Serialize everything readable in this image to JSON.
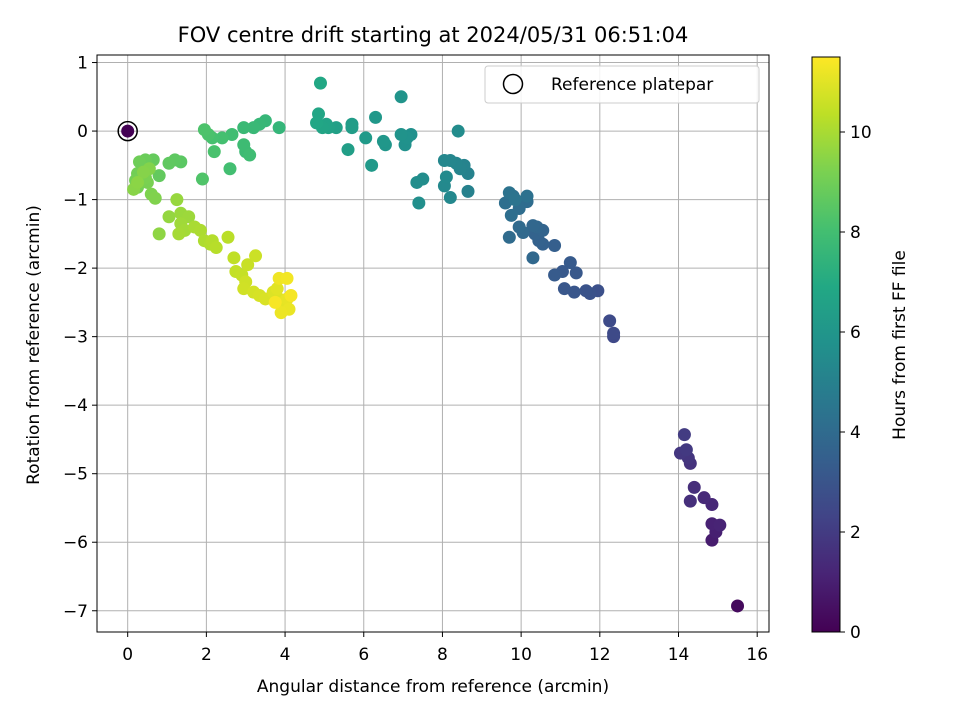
{
  "chart_data": {
    "type": "scatter",
    "title": "FOV centre drift starting at 2024/05/31 06:51:04",
    "xlabel": "Angular distance from reference (arcmin)",
    "ylabel": "Rotation from reference (arcmin)",
    "xlim": [
      -0.78,
      16.3
    ],
    "ylim": [
      -7.31,
      1.11
    ],
    "xticks": [
      0,
      2,
      4,
      6,
      8,
      10,
      12,
      14,
      16
    ],
    "yticks": [
      1,
      0,
      -1,
      -2,
      -3,
      -4,
      -5,
      -6,
      -7
    ],
    "xtick_labels": [
      "0",
      "2",
      "4",
      "6",
      "8",
      "10",
      "12",
      "14",
      "16"
    ],
    "ytick_labels": [
      "1",
      "0",
      "−1",
      "−2",
      "−3",
      "−4",
      "−5",
      "−6",
      "−7"
    ],
    "grid": true,
    "legend": {
      "placement": "top-right",
      "entries": [
        "Reference platepar"
      ]
    },
    "colorbar": {
      "label": "Hours from first FF file",
      "range": [
        0,
        11.5
      ],
      "ticks": [
        0,
        2,
        4,
        6,
        8,
        10
      ],
      "tick_labels": [
        "0",
        "2",
        "4",
        "6",
        "8",
        "10"
      ],
      "colormap": "viridis"
    },
    "reference_point": {
      "x": 0,
      "y": 0
    },
    "points": [
      [
        0,
        0,
        0
      ],
      [
        15.5,
        -6.93,
        0.3
      ],
      [
        14.85,
        -5.97,
        0.9
      ],
      [
        14.95,
        -5.85,
        1.0
      ],
      [
        14.85,
        -5.73,
        1.1
      ],
      [
        15.05,
        -5.75,
        1.15
      ],
      [
        14.85,
        -5.45,
        1.25
      ],
      [
        14.65,
        -5.35,
        1.35
      ],
      [
        14.4,
        -5.2,
        1.5
      ],
      [
        14.3,
        -5.4,
        1.55
      ],
      [
        14.3,
        -4.85,
        1.65
      ],
      [
        14.25,
        -4.77,
        1.75
      ],
      [
        14.05,
        -4.7,
        1.85
      ],
      [
        14.2,
        -4.65,
        1.9
      ],
      [
        14.15,
        -4.43,
        2.0
      ],
      [
        12.35,
        -3.0,
        2.5
      ],
      [
        12.35,
        -2.95,
        2.55
      ],
      [
        12.25,
        -2.77,
        2.6
      ],
      [
        11.95,
        -2.33,
        2.8
      ],
      [
        11.75,
        -2.37,
        2.9
      ],
      [
        11.65,
        -2.33,
        2.95
      ],
      [
        11.35,
        -2.35,
        3.05
      ],
      [
        11.1,
        -2.3,
        3.1
      ],
      [
        11.4,
        -2.07,
        3.15
      ],
      [
        11.05,
        -2.05,
        3.2
      ],
      [
        11.25,
        -1.92,
        3.25
      ],
      [
        10.85,
        -2.1,
        3.3
      ],
      [
        10.85,
        -1.67,
        3.45
      ],
      [
        10.55,
        -1.65,
        3.55
      ],
      [
        10.45,
        -1.6,
        3.6
      ],
      [
        10.35,
        -1.5,
        3.65
      ],
      [
        10.55,
        -1.45,
        3.7
      ],
      [
        10.4,
        -1.4,
        3.75
      ],
      [
        10.3,
        -1.38,
        3.8
      ],
      [
        10.3,
        -1.85,
        3.85
      ],
      [
        10.05,
        -1.48,
        3.9
      ],
      [
        9.95,
        -1.4,
        3.95
      ],
      [
        9.7,
        -1.55,
        4.0
      ],
      [
        10.15,
        -1.03,
        4.05
      ],
      [
        9.95,
        -1.13,
        4.1
      ],
      [
        9.75,
        -1.23,
        4.15
      ],
      [
        9.6,
        -1.05,
        4.2
      ],
      [
        9.8,
        -0.95,
        4.25
      ],
      [
        10.15,
        -0.95,
        4.3
      ],
      [
        9.7,
        -0.9,
        4.35
      ],
      [
        9.85,
        -1.0,
        4.4
      ],
      [
        8.65,
        -0.88,
        5.0
      ],
      [
        8.65,
        -0.62,
        5.05
      ],
      [
        8.55,
        -0.5,
        5.1
      ],
      [
        8.45,
        -0.55,
        5.15
      ],
      [
        8.35,
        -0.47,
        5.2
      ],
      [
        8.2,
        -0.43,
        5.25
      ],
      [
        8.05,
        -0.43,
        5.3
      ],
      [
        8.2,
        -0.97,
        5.35
      ],
      [
        8.05,
        -0.8,
        5.4
      ],
      [
        8.1,
        -0.67,
        5.45
      ],
      [
        8.4,
        0.0,
        5.5
      ],
      [
        7.5,
        -0.7,
        5.55
      ],
      [
        7.35,
        -0.75,
        5.6
      ],
      [
        7.4,
        -1.05,
        5.65
      ],
      [
        7.2,
        -0.05,
        5.7
      ],
      [
        7.05,
        -0.2,
        5.75
      ],
      [
        7.1,
        -0.1,
        5.8
      ],
      [
        6.95,
        -0.05,
        5.85
      ],
      [
        6.95,
        0.5,
        5.9
      ],
      [
        6.55,
        -0.2,
        6.0
      ],
      [
        6.5,
        -0.15,
        6.05
      ],
      [
        6.3,
        0.2,
        6.1
      ],
      [
        6.2,
        -0.5,
        6.15
      ],
      [
        6.05,
        -0.1,
        6.2
      ],
      [
        5.7,
        0.1,
        6.3
      ],
      [
        5.7,
        0.05,
        6.35
      ],
      [
        5.6,
        -0.27,
        6.4
      ],
      [
        5.3,
        0.05,
        6.5
      ],
      [
        5.1,
        0.05,
        6.6
      ],
      [
        5.05,
        0.1,
        6.65
      ],
      [
        4.95,
        0.05,
        6.7
      ],
      [
        4.85,
        0.25,
        6.75
      ],
      [
        4.8,
        0.12,
        6.8
      ],
      [
        4.9,
        0.7,
        6.85
      ],
      [
        3.85,
        0.05,
        7.55
      ],
      [
        3.5,
        0.15,
        7.6
      ],
      [
        3.35,
        0.1,
        7.65
      ],
      [
        3.2,
        0.05,
        7.7
      ],
      [
        2.95,
        0.05,
        7.75
      ],
      [
        3.0,
        -0.3,
        7.8
      ],
      [
        2.95,
        -0.2,
        7.85
      ],
      [
        3.1,
        -0.35,
        7.9
      ],
      [
        2.65,
        -0.05,
        7.95
      ],
      [
        2.6,
        -0.55,
        8.0
      ],
      [
        2.4,
        -0.1,
        8.05
      ],
      [
        2.15,
        -0.1,
        8.1
      ],
      [
        2.2,
        -0.3,
        8.15
      ],
      [
        2.05,
        -0.05,
        8.2
      ],
      [
        1.95,
        0.02,
        8.25
      ],
      [
        1.9,
        -0.7,
        8.3
      ],
      [
        1.35,
        -0.45,
        8.55
      ],
      [
        1.2,
        -0.42,
        8.6
      ],
      [
        1.05,
        -0.47,
        8.65
      ],
      [
        0.8,
        -0.65,
        8.7
      ],
      [
        0.65,
        -0.42,
        8.75
      ],
      [
        0.5,
        -0.5,
        8.8
      ],
      [
        0.45,
        -0.42,
        8.85
      ],
      [
        0.35,
        -0.6,
        8.9
      ],
      [
        0.3,
        -0.45,
        8.95
      ],
      [
        0.25,
        -0.62,
        9.0
      ],
      [
        0.2,
        -0.72,
        9.05
      ],
      [
        0.25,
        -0.82,
        9.1
      ],
      [
        0.5,
        -0.75,
        9.15
      ],
      [
        0.45,
        -0.68,
        9.2
      ],
      [
        0.6,
        -0.92,
        9.25
      ],
      [
        0.7,
        -0.98,
        9.3
      ],
      [
        0.55,
        -0.55,
        9.35
      ],
      [
        0.4,
        -0.6,
        9.4
      ],
      [
        0.15,
        -0.85,
        9.45
      ],
      [
        0.25,
        -0.75,
        9.5
      ],
      [
        0.8,
        -1.5,
        9.55
      ],
      [
        1.05,
        -1.25,
        9.65
      ],
      [
        1.25,
        -1.0,
        9.7
      ],
      [
        1.35,
        -1.2,
        9.75
      ],
      [
        1.55,
        -1.25,
        9.8
      ],
      [
        1.35,
        -1.35,
        9.85
      ],
      [
        1.45,
        -1.45,
        9.9
      ],
      [
        1.3,
        -1.5,
        9.95
      ],
      [
        1.7,
        -1.4,
        10.0
      ],
      [
        1.85,
        -1.45,
        10.05
      ],
      [
        1.95,
        -1.6,
        10.1
      ],
      [
        2.1,
        -1.65,
        10.15
      ],
      [
        2.15,
        -1.6,
        10.2
      ],
      [
        2.25,
        -1.7,
        10.25
      ],
      [
        2.55,
        -1.55,
        10.3
      ],
      [
        2.7,
        -1.85,
        10.4
      ],
      [
        2.75,
        -2.05,
        10.45
      ],
      [
        2.9,
        -2.1,
        10.5
      ],
      [
        3.05,
        -1.95,
        10.55
      ],
      [
        3.25,
        -1.82,
        10.6
      ],
      [
        3.0,
        -2.2,
        10.65
      ],
      [
        2.95,
        -2.3,
        10.7
      ],
      [
        3.2,
        -2.35,
        10.75
      ],
      [
        3.35,
        -2.4,
        10.8
      ],
      [
        3.5,
        -2.45,
        10.85
      ],
      [
        3.7,
        -2.35,
        10.9
      ],
      [
        3.85,
        -2.45,
        10.95
      ],
      [
        3.8,
        -2.3,
        11.0
      ],
      [
        3.95,
        -2.5,
        11.05
      ],
      [
        4.05,
        -2.45,
        11.1
      ],
      [
        4.1,
        -2.6,
        11.15
      ],
      [
        3.9,
        -2.65,
        11.2
      ],
      [
        3.85,
        -2.15,
        11.25
      ],
      [
        4.05,
        -2.15,
        11.3
      ],
      [
        4.15,
        -2.4,
        11.35
      ],
      [
        3.75,
        -2.5,
        11.4
      ]
    ]
  }
}
